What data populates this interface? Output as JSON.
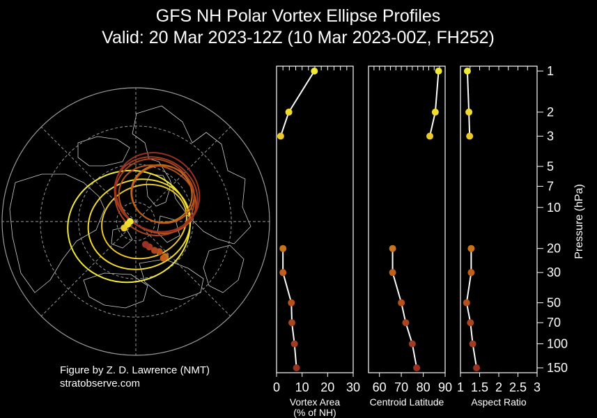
{
  "title_line1": "GFS NH Polar Vortex Ellipse Profiles",
  "title_line2": "Valid: 20 Mar 2023-12Z  (10 Mar 2023-00Z, FH252)",
  "credit_line1": "Figure by Z. D. Lawrence (NMT)",
  "credit_line2": "stratobserve.com",
  "colors": {
    "background": "#000000",
    "line": "#ffffff",
    "p1": "#f2ea38",
    "p2": "#f0dc2e",
    "p3": "#ecc92a",
    "p20": "#c8741c",
    "p30": "#c05e1a",
    "p50": "#b8501c",
    "p70": "#ad4420",
    "p100": "#a33a22",
    "p150": "#9a3224",
    "map_gray": "#9a9a9a"
  },
  "chart_data": [
    {
      "type": "polar-map",
      "ellipses": [
        {
          "level": 1,
          "color": "#f2ea38",
          "centroid_lat": 87,
          "centroid_lon": -90
        },
        {
          "level": 2,
          "color": "#f0dc2e",
          "centroid_lat": 85.5,
          "centroid_lon": -72
        },
        {
          "level": 3,
          "color": "#ecc92a",
          "centroid_lat": 83,
          "centroid_lon": -61
        },
        {
          "level": 20,
          "color": "#c8741c",
          "centroid_lat": 66,
          "centroid_lon": 40
        },
        {
          "level": 30,
          "color": "#c05e1a",
          "centroid_lat": 66,
          "centroid_lon": 37
        },
        {
          "level": 50,
          "color": "#b8501c",
          "centroid_lat": 70,
          "centroid_lon": 38
        },
        {
          "level": 70,
          "color": "#ad4420",
          "centroid_lat": 72,
          "centroid_lon": 33
        },
        {
          "level": 100,
          "color": "#a33a22",
          "centroid_lat": 75,
          "centroid_lon": 28
        },
        {
          "level": 150,
          "color": "#9a3224",
          "centroid_lat": 77,
          "centroid_lon": 23
        }
      ]
    },
    {
      "type": "line",
      "xlabel": "Vortex Area\n(% of NH)",
      "xlim": [
        0,
        30
      ],
      "xticks": [
        "0",
        "10",
        "20",
        "30"
      ],
      "points": [
        {
          "p": 1,
          "x": 14.8
        },
        {
          "p": 2,
          "x": 4.8
        },
        {
          "p": 3,
          "x": 1.6
        },
        {
          "p": 20,
          "x": 2.5
        },
        {
          "p": 30,
          "x": 2.5
        },
        {
          "p": 50,
          "x": 5.8
        },
        {
          "p": 70,
          "x": 6.0
        },
        {
          "p": 100,
          "x": 7.0
        },
        {
          "p": 150,
          "x": 7.8
        }
      ]
    },
    {
      "type": "line",
      "xlabel": "Centroid Latitude",
      "xlim": [
        55,
        90
      ],
      "xticks": [
        "60",
        "70",
        "80",
        "90"
      ],
      "points": [
        {
          "p": 1,
          "x": 87
        },
        {
          "p": 2,
          "x": 85.5
        },
        {
          "p": 3,
          "x": 83
        },
        {
          "p": 20,
          "x": 66
        },
        {
          "p": 30,
          "x": 66
        },
        {
          "p": 50,
          "x": 70
        },
        {
          "p": 70,
          "x": 72
        },
        {
          "p": 100,
          "x": 75
        },
        {
          "p": 150,
          "x": 77
        }
      ]
    },
    {
      "type": "line",
      "xlabel": "Aspect Ratio",
      "xlim": [
        1,
        3
      ],
      "xticks": [
        "1",
        "1.5",
        "2",
        "2.5",
        "3"
      ],
      "points": [
        {
          "p": 1,
          "x": 1.18
        },
        {
          "p": 2,
          "x": 1.22
        },
        {
          "p": 3,
          "x": 1.24
        },
        {
          "p": 20,
          "x": 1.28
        },
        {
          "p": 30,
          "x": 1.28
        },
        {
          "p": 50,
          "x": 1.16
        },
        {
          "p": 70,
          "x": 1.26
        },
        {
          "p": 100,
          "x": 1.32
        },
        {
          "p": 150,
          "x": 1.42
        }
      ]
    }
  ],
  "yaxis": {
    "label": "Pressure (hPa)",
    "ticks": [
      "1",
      "2",
      "3",
      "5",
      "7",
      "10",
      "20",
      "30",
      "50",
      "70",
      "100",
      "150"
    ]
  }
}
